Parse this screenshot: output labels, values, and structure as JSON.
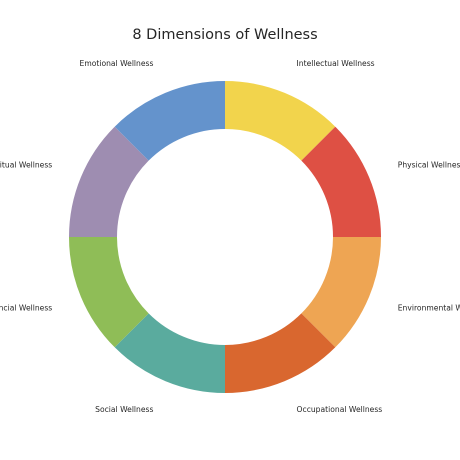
{
  "chart_data": {
    "type": "pie",
    "variant": "donut",
    "title": "8 Dimensions of Wellness",
    "start": "top, clockwise",
    "categories": [
      "Intellectual Wellness",
      "Physical Wellness",
      "Environmental Wellness",
      "Occupational Wellness",
      "Social Wellness",
      "Financial Wellness",
      "Spiritual Wellness",
      "Emotional Wellness"
    ],
    "values": [
      1,
      1,
      1,
      1,
      1,
      1,
      1,
      1
    ],
    "colors": [
      "#f2d44c",
      "#de5044",
      "#eea553",
      "#d9672f",
      "#5aab9e",
      "#8fbd57",
      "#9e8db1",
      "#6493cc"
    ],
    "legend": "none"
  }
}
